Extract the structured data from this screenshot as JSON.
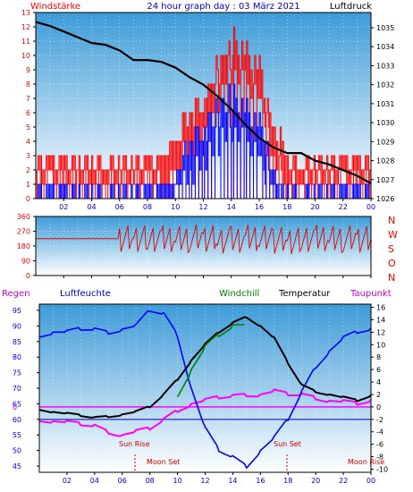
{
  "header": {
    "left_label": "Windstärke",
    "title": "24 hour graph day : 03 März 2021",
    "right_label": "Luftdruck"
  },
  "compass": {
    "labels": [
      "N",
      "W",
      "S",
      "O",
      "N"
    ]
  },
  "legend": {
    "regen": "Regen",
    "luftfeuchte": "Luftfeuchte",
    "windchill": "Windchill",
    "temperatur": "Temperatur",
    "taupunkt": "Taupunkt"
  },
  "events": {
    "sun_rise": "Sun Rise",
    "sun_set": "Sun Set",
    "moon_set": "Moon Set",
    "moon_rise": "Moon Rise"
  },
  "colors": {
    "wind_gust": "#ff0000",
    "wind_avg": "#0000ff",
    "pressure": "#000000",
    "direction": "#dd0000",
    "humidity": "#0000ff",
    "windchill": "#008000",
    "temperature": "#000000",
    "dewpoint": "#ff00ff",
    "rain_axis": "#0000ff",
    "event": "#cc0000"
  },
  "chart_data": [
    {
      "type": "line",
      "title": "24 hour graph day : 03 März 2021",
      "x_ticks": [
        "02",
        "04",
        "06",
        "08",
        "10",
        "12",
        "14",
        "16",
        "18",
        "20",
        "22",
        "00"
      ],
      "left_axis": {
        "label": "Windstärke",
        "ticks": [
          0,
          1,
          2,
          3,
          4,
          5,
          6,
          7,
          8,
          9,
          10,
          11,
          12,
          13
        ],
        "ylim": [
          0,
          13
        ]
      },
      "right_axis": {
        "label": "Luftdruck",
        "ticks": [
          1026,
          1027,
          1028,
          1029,
          1030,
          1031,
          1032,
          1033,
          1034,
          1035
        ],
        "ylim": [
          1026,
          1035.8
        ]
      },
      "x": [
        0,
        1,
        2,
        3,
        4,
        5,
        6,
        7,
        8,
        9,
        10,
        11,
        12,
        13,
        14,
        15,
        16,
        17,
        18,
        19,
        20,
        21,
        22,
        23,
        24
      ],
      "series": [
        {
          "name": "Luftdruck",
          "values": [
            1035.3,
            1035.1,
            1034.8,
            1034.5,
            1034.2,
            1034.1,
            1033.8,
            1033.3,
            1033.3,
            1033.2,
            1032.9,
            1032.4,
            1032.0,
            1031.4,
            1030.7,
            1029.9,
            1029.2,
            1028.7,
            1028.4,
            1028.4,
            1028.0,
            1027.8,
            1027.5,
            1027.2,
            1026.8
          ]
        },
        {
          "name": "Windstärke Böen",
          "values": [
            2,
            2,
            2,
            2,
            2,
            2,
            2,
            2,
            2,
            2,
            3,
            5,
            6,
            8,
            10,
            9,
            8,
            4,
            2,
            2,
            2,
            2,
            2,
            2,
            2
          ]
        },
        {
          "name": "Windstärke Mittel",
          "values": [
            0,
            0,
            0,
            0,
            0,
            0,
            0,
            0,
            0,
            0,
            1,
            3,
            4,
            5,
            6,
            5,
            4,
            1,
            0,
            0,
            0,
            0,
            0,
            0,
            0
          ]
        }
      ]
    },
    {
      "type": "scatter",
      "x_ticks": [
        "02",
        "04",
        "06",
        "08",
        "10",
        "12",
        "14",
        "16",
        "18",
        "20",
        "22",
        "00"
      ],
      "left_axis": {
        "ticks": [
          0,
          90,
          180,
          270,
          360
        ],
        "ylim": [
          0,
          360
        ]
      },
      "series": [
        {
          "name": "Windrichtung",
          "x": [
            0,
            1,
            2,
            3,
            4,
            5,
            6,
            7,
            8,
            9,
            10,
            11,
            12,
            13,
            14,
            15,
            16,
            17,
            18,
            19,
            20,
            21,
            22,
            23,
            24
          ],
          "values": [
            225,
            225,
            225,
            225,
            225,
            225,
            225,
            225,
            225,
            225,
            220,
            230,
            225,
            215,
            220,
            230,
            225,
            215,
            210,
            225,
            230,
            220,
            225,
            220,
            230
          ]
        }
      ]
    },
    {
      "type": "line",
      "x_ticks": [
        "02",
        "04",
        "06",
        "08",
        "10",
        "12",
        "14",
        "16",
        "18",
        "20",
        "22",
        "00"
      ],
      "left_axis": {
        "label": "Luftfeuchte",
        "ticks": [
          45,
          50,
          55,
          60,
          65,
          70,
          75,
          80,
          85,
          90,
          95
        ],
        "ylim": [
          43,
          97
        ]
      },
      "right_axis": {
        "label": "Temperatur",
        "ticks": [
          -10,
          -8,
          -6,
          -4,
          -2,
          0,
          2,
          4,
          6,
          8,
          10,
          12,
          14,
          16
        ],
        "ylim": [
          -10.5,
          16.5
        ]
      },
      "rain_axis": {
        "label": "Regen",
        "ticks": [
          0
        ]
      },
      "x": [
        0,
        1,
        2,
        3,
        4,
        5,
        6,
        7,
        8,
        9,
        10,
        11,
        12,
        13,
        14,
        15,
        16,
        17,
        18,
        19,
        20,
        21,
        22,
        23,
        24
      ],
      "series": [
        {
          "name": "Luftfeuchte",
          "values": [
            87,
            88,
            88,
            89,
            89,
            88,
            89,
            90,
            95,
            94,
            87,
            70,
            57,
            50,
            48,
            45,
            50,
            54,
            60,
            69,
            77,
            82,
            86,
            88,
            89
          ]
        },
        {
          "name": "Temperatur",
          "values": [
            -0.3,
            -0.8,
            -1.1,
            -1.4,
            -1.7,
            -1.5,
            -1.2,
            -0.8,
            0,
            2,
            4.5,
            7.5,
            10,
            12,
            13.5,
            14.5,
            13,
            11,
            7,
            3.5,
            2.5,
            2,
            1.5,
            1,
            1.8
          ]
        },
        {
          "name": "Windchill",
          "values": [
            null,
            null,
            null,
            null,
            null,
            null,
            null,
            null,
            null,
            null,
            2,
            6,
            9.5,
            11.5,
            13,
            null,
            null,
            null,
            null,
            null,
            null,
            null,
            null,
            null,
            null
          ]
        },
        {
          "name": "Taupunkt",
          "values": [
            -2,
            -2.3,
            -2.5,
            -2.8,
            -3,
            -4,
            -4.5,
            -4,
            -3.5,
            -2,
            -0.5,
            0.5,
            1,
            1.5,
            1.8,
            2,
            2,
            2.5,
            2,
            2,
            1.5,
            1,
            0.8,
            0.5,
            1
          ]
        }
      ]
    }
  ]
}
